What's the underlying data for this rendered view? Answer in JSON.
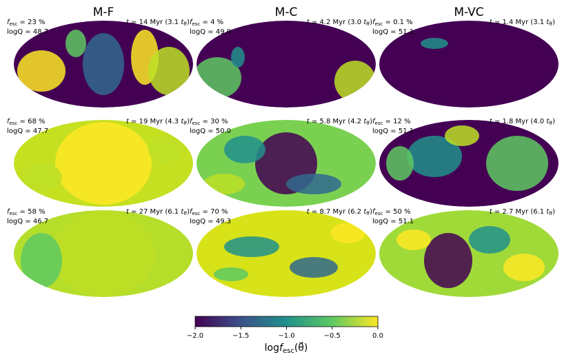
{
  "columns": [
    "M-F",
    "M-C",
    "M-VC"
  ],
  "symbols": {
    "f": "f",
    "esc": "esc",
    "t": "t",
    "ff": "ff",
    "close": ")",
    "log": "log",
    "theta": "(θ⃗)"
  },
  "panels": [
    {
      "fesc": " = 23 %",
      "t": " = 14 Myr (3.1 ",
      "logQ": "logQ = 48.7",
      "color": "#440154"
    },
    {
      "fesc": " = 4 %",
      "t": " = 4.2 Myr (3.0 ",
      "logQ": "logQ = 49.9",
      "color": "#440154"
    },
    {
      "fesc": " = 0.1 %",
      "t": " = 1.4 Myr (3.1 ",
      "logQ": "logQ = 51.1",
      "color": "#440154"
    },
    {
      "fesc": " = 68 %",
      "t": " = 19 Myr (4.3 ",
      "logQ": "logQ = 47.7",
      "color": "#c5e021"
    },
    {
      "fesc": " = 30 %",
      "t": " = 5.8 Myr (4.2 ",
      "logQ": "logQ = 50.0",
      "color": "#7ad151"
    },
    {
      "fesc": " = 12 %",
      "t": " = 1.8 Myr (4.0 ",
      "logQ": "logQ = 51.1",
      "color": "#440154"
    },
    {
      "fesc": " = 58 %",
      "t": " = 27 Myr (6.1 ",
      "logQ": "logQ = 46.7",
      "color": "#b5de2b"
    },
    {
      "fesc": " = 70 %",
      "t": " = 8.7 Myr (6.2 ",
      "logQ": "logQ = 49.3",
      "color": "#d8e219"
    },
    {
      "fesc": " = 50 %",
      "t": " = 2.7 Myr (6.1 ",
      "logQ": "logQ = 51.1",
      "color": "#a0da39"
    }
  ],
  "colorbar": {
    "lim": [
      -2,
      0
    ],
    "ticks": [
      {
        "value": -2,
        "label": "−2.0"
      },
      {
        "value": -1.5,
        "label": "−1.5"
      },
      {
        "value": -1,
        "label": "−1.0"
      },
      {
        "value": -0.5,
        "label": "−0.5"
      },
      {
        "value": 0,
        "label": "0.0"
      }
    ],
    "colors": [
      "#440154",
      "#3b528b",
      "#21918c",
      "#5ec962",
      "#fde725"
    ]
  }
}
